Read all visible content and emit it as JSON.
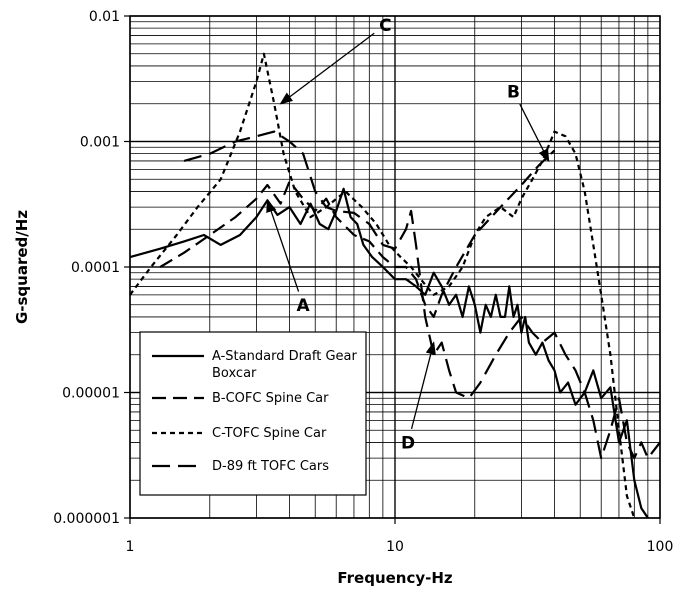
{
  "chart_data": {
    "type": "line",
    "title": "",
    "xlabel": "Frequency-Hz",
    "ylabel": "G-squared/Hz",
    "xscale": "log",
    "yscale": "log",
    "xlim": [
      1,
      100
    ],
    "ylim": [
      1e-06,
      0.01
    ],
    "grid": true,
    "legend_position": "bottom-left",
    "x_ticks": [
      "1",
      "10",
      "100"
    ],
    "y_ticks": [
      "0.000001",
      "0.00001",
      "0.0001",
      "0.001",
      "0.01"
    ],
    "series": [
      {
        "name": "A-Standard Draft Gear Boxcar",
        "style": "solid",
        "points": [
          [
            1,
            0.00012
          ],
          [
            1.3,
            0.00014
          ],
          [
            1.6,
            0.00016
          ],
          [
            1.9,
            0.00018
          ],
          [
            2.2,
            0.00015
          ],
          [
            2.6,
            0.00018
          ],
          [
            3,
            0.00025
          ],
          [
            3.3,
            0.00034
          ],
          [
            3.6,
            0.00026
          ],
          [
            4,
            0.0003
          ],
          [
            4.4,
            0.00022
          ],
          [
            4.8,
            0.00032
          ],
          [
            5.2,
            0.00022
          ],
          [
            5.6,
            0.0002
          ],
          [
            6,
            0.00028
          ],
          [
            6.4,
            0.00042
          ],
          [
            6.8,
            0.00025
          ],
          [
            7.2,
            0.00022
          ],
          [
            7.6,
            0.00015
          ],
          [
            8.2,
            0.00012
          ],
          [
            9,
            0.0001
          ],
          [
            10,
            8e-05
          ],
          [
            11,
            8e-05
          ],
          [
            12,
            7e-05
          ],
          [
            13,
            6e-05
          ],
          [
            14,
            9e-05
          ],
          [
            15,
            7e-05
          ],
          [
            16,
            5e-05
          ],
          [
            17,
            6e-05
          ],
          [
            18,
            4e-05
          ],
          [
            19,
            7e-05
          ],
          [
            20,
            5e-05
          ],
          [
            21,
            3e-05
          ],
          [
            22,
            5e-05
          ],
          [
            23,
            4e-05
          ],
          [
            24,
            6e-05
          ],
          [
            25,
            4e-05
          ],
          [
            26,
            4e-05
          ],
          [
            27,
            7e-05
          ],
          [
            28,
            4e-05
          ],
          [
            29,
            5e-05
          ],
          [
            30,
            3e-05
          ],
          [
            31,
            4e-05
          ],
          [
            32,
            2.5e-05
          ],
          [
            34,
            2e-05
          ],
          [
            36,
            2.5e-05
          ],
          [
            38,
            1.8e-05
          ],
          [
            40,
            1.5e-05
          ],
          [
            42,
            1e-05
          ],
          [
            45,
            1.2e-05
          ],
          [
            48,
            8e-06
          ],
          [
            52,
            1e-05
          ],
          [
            56,
            1.5e-05
          ],
          [
            60,
            9e-06
          ],
          [
            65,
            1.1e-05
          ],
          [
            70,
            4e-06
          ],
          [
            75,
            6e-06
          ],
          [
            80,
            2e-06
          ],
          [
            85,
            1.2e-06
          ],
          [
            90,
            1e-06
          ]
        ]
      },
      {
        "name": "B-COFC Spine Car",
        "style": "long-dash",
        "points": [
          [
            1.3,
            0.0001
          ],
          [
            1.6,
            0.00013
          ],
          [
            2,
            0.00018
          ],
          [
            2.5,
            0.00025
          ],
          [
            3,
            0.00035
          ],
          [
            3.3,
            0.00045
          ],
          [
            3.7,
            0.00032
          ],
          [
            4,
            0.00048
          ],
          [
            4.5,
            0.00035
          ],
          [
            5,
            0.00028
          ],
          [
            5.5,
            0.00035
          ],
          [
            6,
            0.00025
          ],
          [
            7,
            0.00018
          ],
          [
            8,
            0.00016
          ],
          [
            9,
            0.00012
          ],
          [
            10,
            0.0001
          ],
          [
            11,
            0.0001
          ],
          [
            12,
            8e-05
          ],
          [
            13,
            5e-05
          ],
          [
            14,
            4e-05
          ],
          [
            15,
            6e-05
          ],
          [
            17,
            0.0001
          ],
          [
            20,
            0.00018
          ],
          [
            25,
            0.0003
          ],
          [
            30,
            0.00045
          ],
          [
            35,
            0.00065
          ],
          [
            40,
            0.00085
          ]
        ]
      },
      {
        "name": "C-TOFC Spine Car",
        "style": "short-dash",
        "points": [
          [
            1,
            6e-05
          ],
          [
            1.2,
            0.0001
          ],
          [
            1.5,
            0.00018
          ],
          [
            1.8,
            0.0003
          ],
          [
            2.2,
            0.0005
          ],
          [
            2.6,
            0.0012
          ],
          [
            3,
            0.003
          ],
          [
            3.2,
            0.005
          ],
          [
            3.5,
            0.002
          ],
          [
            3.8,
            0.0008
          ],
          [
            4.2,
            0.0004
          ],
          [
            4.8,
            0.00025
          ],
          [
            5.5,
            0.0003
          ],
          [
            6.5,
            0.0004
          ],
          [
            7.5,
            0.0003
          ],
          [
            8.5,
            0.00022
          ],
          [
            9.5,
            0.00015
          ],
          [
            10.5,
            0.00012
          ],
          [
            11.5,
            0.0001
          ],
          [
            12.5,
            8e-05
          ],
          [
            14,
            6e-05
          ],
          [
            16,
            7e-05
          ],
          [
            18,
            0.0001
          ],
          [
            20,
            0.00018
          ],
          [
            22,
            0.00025
          ],
          [
            25,
            0.0003
          ],
          [
            28,
            0.00025
          ],
          [
            30,
            0.00035
          ],
          [
            33,
            0.0005
          ],
          [
            36,
            0.0007
          ],
          [
            40,
            0.0012
          ],
          [
            44,
            0.0011
          ],
          [
            48,
            0.0008
          ],
          [
            52,
            0.0004
          ],
          [
            56,
            0.00015
          ],
          [
            60,
            6e-05
          ],
          [
            65,
            2e-05
          ],
          [
            70,
            5e-06
          ],
          [
            75,
            1.5e-06
          ],
          [
            80,
            1e-06
          ]
        ]
      },
      {
        "name": "D-89 ft TOFC Cars",
        "style": "long-dash-2",
        "points": [
          [
            1.6,
            0.0007
          ],
          [
            2,
            0.0008
          ],
          [
            2.5,
            0.001
          ],
          [
            3,
            0.0011
          ],
          [
            3.5,
            0.0012
          ],
          [
            4,
            0.001
          ],
          [
            4.5,
            0.0008
          ],
          [
            5,
            0.0004
          ],
          [
            5.5,
            0.0003
          ],
          [
            6,
            0.00028
          ],
          [
            7,
            0.00027
          ],
          [
            8,
            0.00022
          ],
          [
            9,
            0.00015
          ],
          [
            10,
            0.00014
          ],
          [
            11,
            0.0002
          ],
          [
            11.5,
            0.00028
          ],
          [
            12,
            0.00015
          ],
          [
            13,
            4e-05
          ],
          [
            14,
            2e-05
          ],
          [
            15,
            2.5e-05
          ],
          [
            16,
            1.5e-05
          ],
          [
            17,
            1e-05
          ],
          [
            19,
            9e-06
          ],
          [
            21,
            1.2e-05
          ],
          [
            24,
            2e-05
          ],
          [
            27,
            3e-05
          ],
          [
            30,
            4e-05
          ],
          [
            33,
            3e-05
          ],
          [
            36,
            2.5e-05
          ],
          [
            40,
            3e-05
          ],
          [
            44,
            2e-05
          ],
          [
            48,
            1.5e-05
          ],
          [
            52,
            1e-05
          ],
          [
            56,
            6e-06
          ],
          [
            60,
            3e-06
          ],
          [
            65,
            5e-06
          ],
          [
            70,
            9e-06
          ],
          [
            75,
            4e-06
          ],
          [
            80,
            3e-06
          ],
          [
            85,
            4e-06
          ],
          [
            90,
            3e-06
          ],
          [
            100,
            4e-06
          ]
        ]
      }
    ],
    "annotations": [
      {
        "label": "A",
        "point": [
          3.3,
          0.00034
        ],
        "text_at": [
          4.5,
          5e-05
        ]
      },
      {
        "label": "B",
        "point": [
          38,
          0.0007
        ],
        "text_at": [
          28,
          0.0025
        ]
      },
      {
        "label": "C",
        "point": [
          3.7,
          0.002
        ],
        "text_at": [
          9.2,
          0.0085
        ]
      },
      {
        "label": "D",
        "point": [
          14,
          2.5e-05
        ],
        "text_at": [
          11.2,
          4e-06
        ]
      }
    ]
  }
}
